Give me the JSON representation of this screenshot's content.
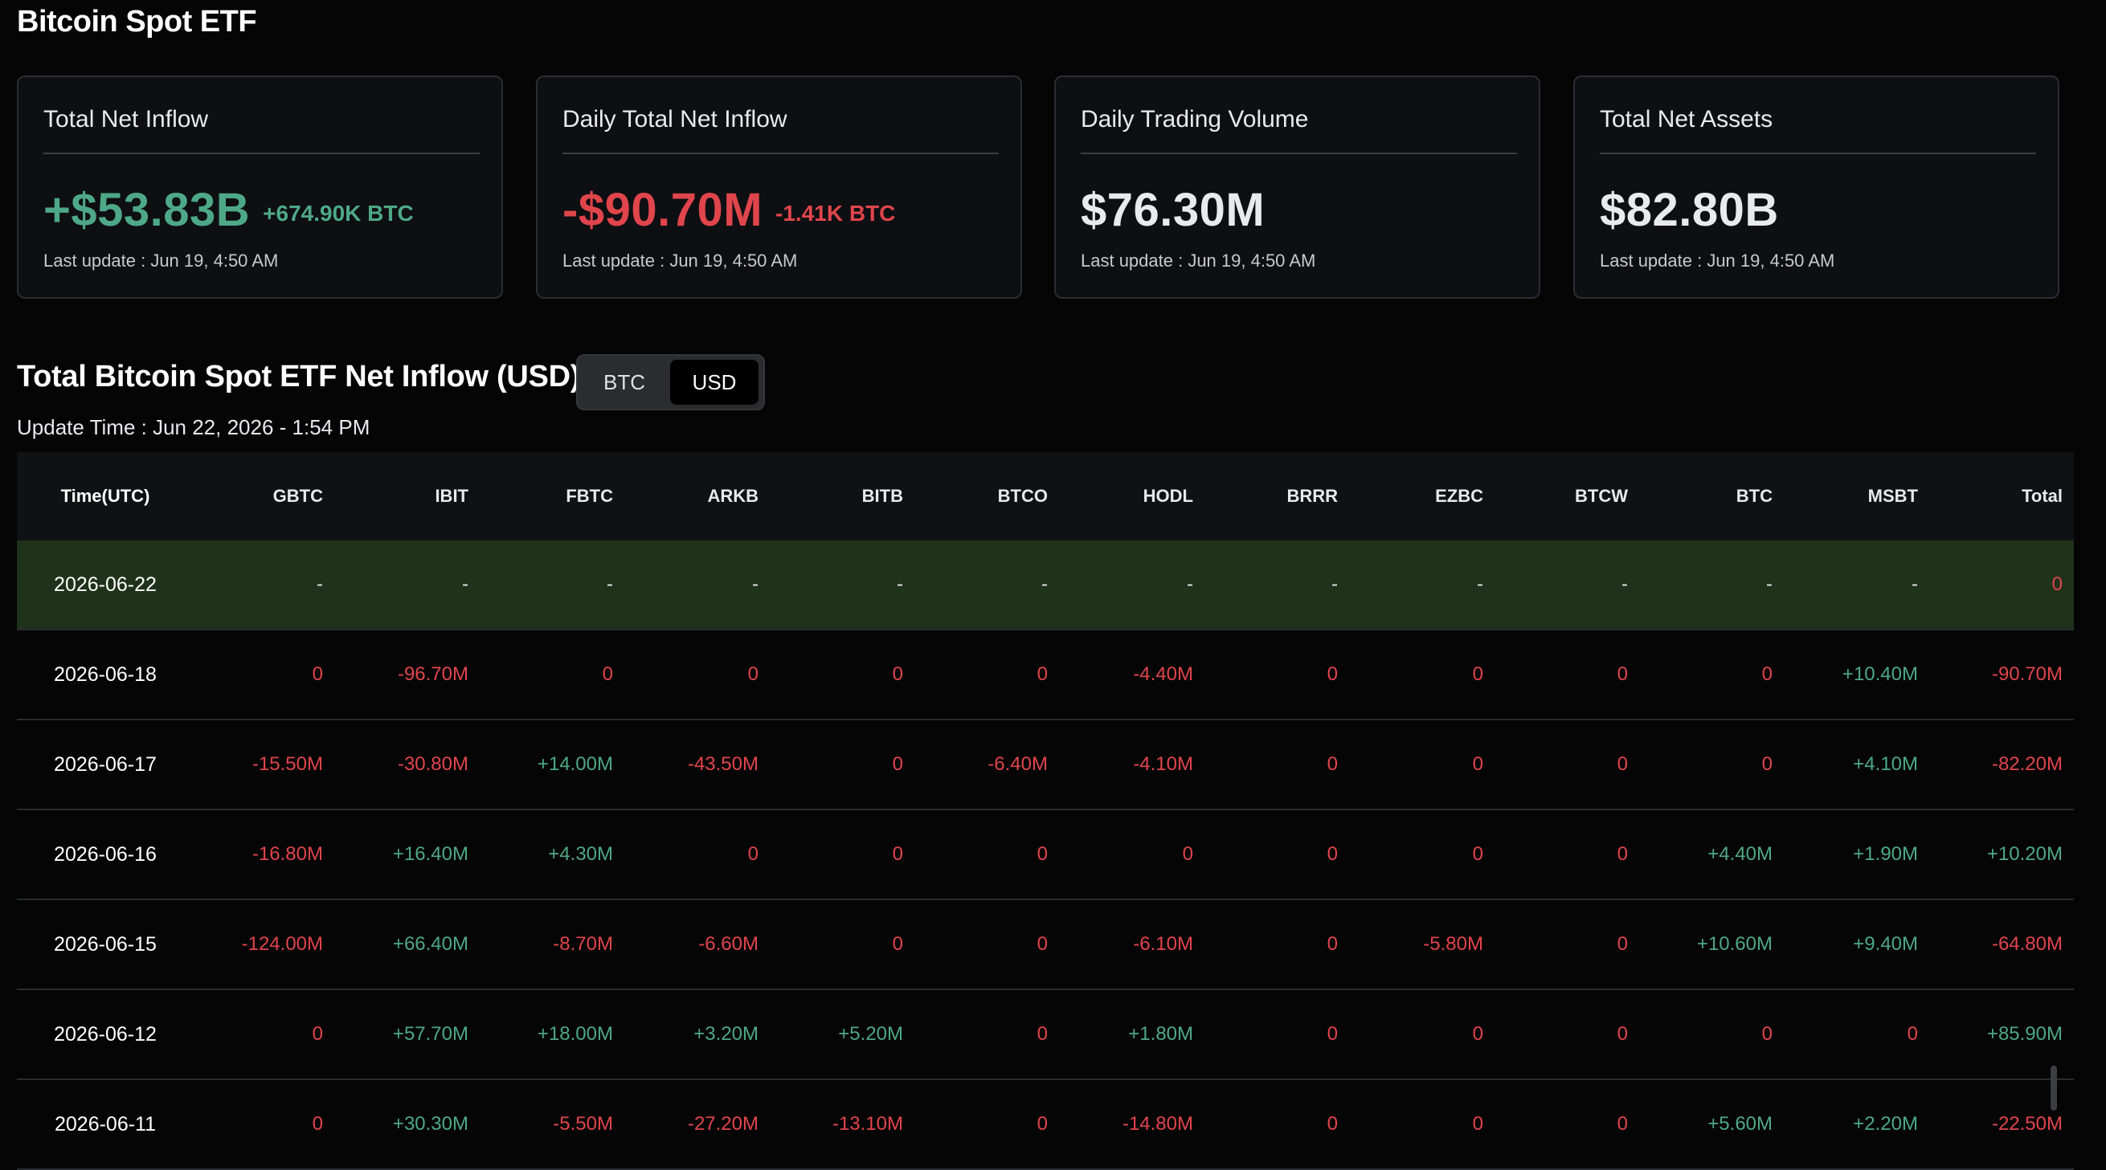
{
  "page_title": "Bitcoin Spot ETF",
  "colors": {
    "positive": "#4ea887",
    "negative": "#e0454c",
    "background": "#050506",
    "card_border": "#2a2d33",
    "highlight_row": "#1f321a"
  },
  "cards": [
    {
      "label": "Total Net Inflow",
      "value": "+$53.83B",
      "sub": "+674.90K BTC",
      "tone": "positive",
      "update": "Last update : Jun 19, 4:50 AM"
    },
    {
      "label": "Daily Total Net Inflow",
      "value": "-$90.70M",
      "sub": "-1.41K BTC",
      "tone": "negative",
      "update": "Last update : Jun 19, 4:50 AM"
    },
    {
      "label": "Daily Trading Volume",
      "value": "$76.30M",
      "sub": "",
      "tone": "neutral",
      "update": "Last update : Jun 19, 4:50 AM"
    },
    {
      "label": "Total Net Assets",
      "value": "$82.80B",
      "sub": "",
      "tone": "neutral",
      "update": "Last update : Jun 19, 4:50 AM"
    }
  ],
  "section": {
    "title": "Total Bitcoin Spot ETF Net Inflow (USD)",
    "toggle": {
      "options": [
        "BTC",
        "USD"
      ],
      "selected": "USD"
    },
    "update_time": "Update Time : Jun 22, 2026 - 1:54 PM"
  },
  "table": {
    "columns": [
      "Time(UTC)",
      "GBTC",
      "IBIT",
      "FBTC",
      "ARKB",
      "BITB",
      "BTCO",
      "HODL",
      "BRRR",
      "EZBC",
      "BTCW",
      "BTC",
      "MSBT",
      "Total"
    ],
    "rows": [
      {
        "date": "2026-06-22",
        "highlight": true,
        "values": [
          "-",
          "-",
          "-",
          "-",
          "-",
          "-",
          "-",
          "-",
          "-",
          "-",
          "-",
          "-",
          "0"
        ]
      },
      {
        "date": "2026-06-18",
        "highlight": false,
        "values": [
          "0",
          "-96.70M",
          "0",
          "0",
          "0",
          "0",
          "-4.40M",
          "0",
          "0",
          "0",
          "0",
          "+10.40M",
          "-90.70M"
        ]
      },
      {
        "date": "2026-06-17",
        "highlight": false,
        "values": [
          "-15.50M",
          "-30.80M",
          "+14.00M",
          "-43.50M",
          "0",
          "-6.40M",
          "-4.10M",
          "0",
          "0",
          "0",
          "0",
          "+4.10M",
          "-82.20M"
        ]
      },
      {
        "date": "2026-06-16",
        "highlight": false,
        "values": [
          "-16.80M",
          "+16.40M",
          "+4.30M",
          "0",
          "0",
          "0",
          "0",
          "0",
          "0",
          "0",
          "+4.40M",
          "+1.90M",
          "+10.20M"
        ]
      },
      {
        "date": "2026-06-15",
        "highlight": false,
        "values": [
          "-124.00M",
          "+66.40M",
          "-8.70M",
          "-6.60M",
          "0",
          "0",
          "-6.10M",
          "0",
          "-5.80M",
          "0",
          "+10.60M",
          "+9.40M",
          "-64.80M"
        ]
      },
      {
        "date": "2026-06-12",
        "highlight": false,
        "values": [
          "0",
          "+57.70M",
          "+18.00M",
          "+3.20M",
          "+5.20M",
          "0",
          "+1.80M",
          "0",
          "0",
          "0",
          "0",
          "0",
          "+85.90M"
        ]
      },
      {
        "date": "2026-06-11",
        "highlight": false,
        "values": [
          "0",
          "+30.30M",
          "-5.50M",
          "-27.20M",
          "-13.10M",
          "0",
          "-14.80M",
          "0",
          "0",
          "0",
          "+5.60M",
          "+2.20M",
          "-22.50M"
        ]
      }
    ]
  }
}
